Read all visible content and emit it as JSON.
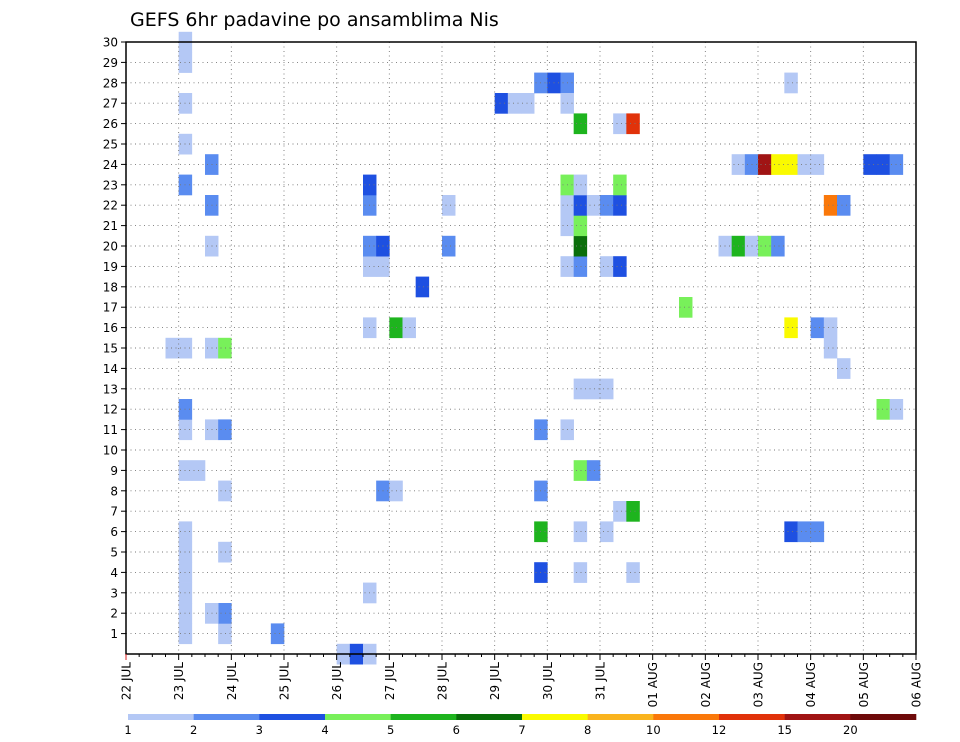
{
  "chart_data": {
    "type": "heatmap",
    "title": "GEFS 6hr padavine po ansamblima Nis",
    "x_tick_labels": [
      "22 JUL",
      "23 JUL",
      "24 JUL",
      "25 JUL",
      "26 JUL",
      "27 JUL",
      "28 JUL",
      "29 JUL",
      "30 JUL",
      "31 JUL",
      "01 AUG",
      "02 AUG",
      "03 AUG",
      "04 AUG",
      "05 AUG",
      "06 AUG"
    ],
    "y_tick_labels": [
      "1",
      "2",
      "3",
      "4",
      "5",
      "6",
      "7",
      "8",
      "9",
      "10",
      "11",
      "12",
      "13",
      "14",
      "15",
      "16",
      "17",
      "18",
      "19",
      "20",
      "21",
      "22",
      "23",
      "24",
      "25",
      "26",
      "27",
      "28",
      "29",
      "30"
    ],
    "x_unit": "6-hour steps from 22 JUL 00Z",
    "y_unit": "ensemble member",
    "grid": true,
    "colorbar": {
      "labels": [
        "1",
        "2",
        "3",
        "4",
        "5",
        "6",
        "7",
        "8",
        "10",
        "12",
        "15",
        "20"
      ],
      "colors": [
        "#b4c8f5",
        "#5a8cf0",
        "#1e50e1",
        "#78f05a",
        "#1eb41e",
        "#0a6e0a",
        "#fafa00",
        "#fab41e",
        "#fa780a",
        "#e1320a",
        "#a01414",
        "#6e0a0a"
      ],
      "thresholds": [
        1,
        2,
        3,
        4,
        5,
        6,
        7,
        8,
        10,
        12,
        15,
        20,
        25
      ]
    },
    "cells": [
      {
        "x": 4,
        "y": 1,
        "v": 1.5
      },
      {
        "x": 4,
        "y": 2,
        "v": 1.5
      },
      {
        "x": 4,
        "y": 3,
        "v": 1.5
      },
      {
        "x": 4,
        "y": 4,
        "v": 1.5
      },
      {
        "x": 4,
        "y": 5,
        "v": 1.5
      },
      {
        "x": 4,
        "y": 6,
        "v": 1.5
      },
      {
        "x": 4,
        "y": 9,
        "v": 1.5
      },
      {
        "x": 5,
        "y": 9,
        "v": 1.5
      },
      {
        "x": 4,
        "y": 11,
        "v": 1.5
      },
      {
        "x": 4,
        "y": 12,
        "v": 2.5
      },
      {
        "x": 3,
        "y": 15,
        "v": 1.5
      },
      {
        "x": 4,
        "y": 15,
        "v": 1.5
      },
      {
        "x": 4,
        "y": 23,
        "v": 2.5
      },
      {
        "x": 4,
        "y": 25,
        "v": 1.5
      },
      {
        "x": 4,
        "y": 27,
        "v": 1.5
      },
      {
        "x": 4,
        "y": 29,
        "v": 1.5
      },
      {
        "x": 4,
        "y": 30,
        "v": 1.5
      },
      {
        "x": 7,
        "y": 1,
        "v": 1.5
      },
      {
        "x": 7,
        "y": 2,
        "v": 2.5
      },
      {
        "x": 6,
        "y": 2,
        "v": 1.5
      },
      {
        "x": 7,
        "y": 5,
        "v": 1.5
      },
      {
        "x": 7,
        "y": 8,
        "v": 1.5
      },
      {
        "x": 6,
        "y": 11,
        "v": 1.5
      },
      {
        "x": 7,
        "y": 11,
        "v": 2.5
      },
      {
        "x": 6,
        "y": 15,
        "v": 1.5
      },
      {
        "x": 7,
        "y": 15,
        "v": 4.5
      },
      {
        "x": 6,
        "y": 20,
        "v": 1.5
      },
      {
        "x": 6,
        "y": 22,
        "v": 2.5
      },
      {
        "x": 6,
        "y": 24,
        "v": 2.5
      },
      {
        "x": 11,
        "y": 1,
        "v": 2.5
      },
      {
        "x": 16,
        "y": 0,
        "v": 1.5
      },
      {
        "x": 17,
        "y": 0,
        "v": 3.5
      },
      {
        "x": 18,
        "y": 0,
        "v": 1.5
      },
      {
        "x": 18,
        "y": 3,
        "v": 1.5
      },
      {
        "x": 19,
        "y": 8,
        "v": 2.5
      },
      {
        "x": 20,
        "y": 8,
        "v": 1.5
      },
      {
        "x": 18,
        "y": 16,
        "v": 1.5
      },
      {
        "x": 20,
        "y": 16,
        "v": 5.5
      },
      {
        "x": 21,
        "y": 16,
        "v": 1.5
      },
      {
        "x": 22,
        "y": 18,
        "v": 3.5
      },
      {
        "x": 18,
        "y": 19,
        "v": 1.5
      },
      {
        "x": 19,
        "y": 19,
        "v": 1.5
      },
      {
        "x": 18,
        "y": 20,
        "v": 2.5
      },
      {
        "x": 19,
        "y": 20,
        "v": 3.5
      },
      {
        "x": 18,
        "y": 22,
        "v": 2.5
      },
      {
        "x": 18,
        "y": 23,
        "v": 3.5
      },
      {
        "x": 24,
        "y": 20,
        "v": 2.5
      },
      {
        "x": 24,
        "y": 22,
        "v": 1.5
      },
      {
        "x": 28,
        "y": 27,
        "v": 3.5
      },
      {
        "x": 29,
        "y": 27,
        "v": 1.5
      },
      {
        "x": 30,
        "y": 27,
        "v": 1.5
      },
      {
        "x": 31,
        "y": 28,
        "v": 2.5
      },
      {
        "x": 32,
        "y": 28,
        "v": 3.5
      },
      {
        "x": 33,
        "y": 28,
        "v": 2.5
      },
      {
        "x": 33,
        "y": 27,
        "v": 1.5
      },
      {
        "x": 31,
        "y": 4,
        "v": 3.5
      },
      {
        "x": 31,
        "y": 6,
        "v": 5.5
      },
      {
        "x": 31,
        "y": 8,
        "v": 2.5
      },
      {
        "x": 31,
        "y": 11,
        "v": 2.5
      },
      {
        "x": 33,
        "y": 11,
        "v": 1.5
      },
      {
        "x": 34,
        "y": 9,
        "v": 4.5
      },
      {
        "x": 35,
        "y": 9,
        "v": 2.5
      },
      {
        "x": 34,
        "y": 4,
        "v": 1.5
      },
      {
        "x": 34,
        "y": 6,
        "v": 1.5
      },
      {
        "x": 36,
        "y": 6,
        "v": 1.5
      },
      {
        "x": 37,
        "y": 7,
        "v": 1.5
      },
      {
        "x": 38,
        "y": 7,
        "v": 5.5
      },
      {
        "x": 38,
        "y": 4,
        "v": 1.5
      },
      {
        "x": 34,
        "y": 13,
        "v": 1.5
      },
      {
        "x": 35,
        "y": 13,
        "v": 1.5
      },
      {
        "x": 36,
        "y": 13,
        "v": 1.5
      },
      {
        "x": 33,
        "y": 19,
        "v": 1.5
      },
      {
        "x": 34,
        "y": 19,
        "v": 2.5
      },
      {
        "x": 34,
        "y": 20,
        "v": 6.5
      },
      {
        "x": 33,
        "y": 21,
        "v": 1.5
      },
      {
        "x": 34,
        "y": 21,
        "v": 4.5
      },
      {
        "x": 33,
        "y": 22,
        "v": 1.5
      },
      {
        "x": 34,
        "y": 22,
        "v": 3.5
      },
      {
        "x": 35,
        "y": 22,
        "v": 1.5
      },
      {
        "x": 36,
        "y": 22,
        "v": 2.5
      },
      {
        "x": 37,
        "y": 22,
        "v": 3.5
      },
      {
        "x": 33,
        "y": 23,
        "v": 4.5
      },
      {
        "x": 34,
        "y": 23,
        "v": 1.5
      },
      {
        "x": 37,
        "y": 23,
        "v": 4.5
      },
      {
        "x": 36,
        "y": 19,
        "v": 1.5
      },
      {
        "x": 37,
        "y": 19,
        "v": 3.5
      },
      {
        "x": 34,
        "y": 26,
        "v": 5.5
      },
      {
        "x": 37,
        "y": 26,
        "v": 1.5
      },
      {
        "x": 38,
        "y": 26,
        "v": 13
      },
      {
        "x": 42,
        "y": 17,
        "v": 4.5
      },
      {
        "x": 45,
        "y": 20,
        "v": 1.5
      },
      {
        "x": 46,
        "y": 20,
        "v": 5.5
      },
      {
        "x": 47,
        "y": 20,
        "v": 1.5
      },
      {
        "x": 48,
        "y": 20,
        "v": 4.5
      },
      {
        "x": 49,
        "y": 20,
        "v": 2.5
      },
      {
        "x": 46,
        "y": 24,
        "v": 1.5
      },
      {
        "x": 47,
        "y": 24,
        "v": 2.5
      },
      {
        "x": 48,
        "y": 24,
        "v": 17
      },
      {
        "x": 49,
        "y": 24,
        "v": 7.5
      },
      {
        "x": 50,
        "y": 24,
        "v": 7.5
      },
      {
        "x": 51,
        "y": 24,
        "v": 1.5
      },
      {
        "x": 52,
        "y": 24,
        "v": 1.5
      },
      {
        "x": 50,
        "y": 28,
        "v": 1.5
      },
      {
        "x": 50,
        "y": 6,
        "v": 3.5
      },
      {
        "x": 51,
        "y": 6,
        "v": 2.5
      },
      {
        "x": 52,
        "y": 6,
        "v": 2.5
      },
      {
        "x": 50,
        "y": 16,
        "v": 7.5
      },
      {
        "x": 52,
        "y": 16,
        "v": 2.5
      },
      {
        "x": 53,
        "y": 16,
        "v": 1.5
      },
      {
        "x": 53,
        "y": 15,
        "v": 1.5
      },
      {
        "x": 54,
        "y": 14,
        "v": 1.5
      },
      {
        "x": 53,
        "y": 22,
        "v": 11
      },
      {
        "x": 54,
        "y": 22,
        "v": 2.5
      },
      {
        "x": 56,
        "y": 24,
        "v": 3.5
      },
      {
        "x": 57,
        "y": 24,
        "v": 3.5
      },
      {
        "x": 58,
        "y": 24,
        "v": 2.5
      },
      {
        "x": 57,
        "y": 12,
        "v": 4.5
      },
      {
        "x": 58,
        "y": 12,
        "v": 1.5
      }
    ]
  }
}
